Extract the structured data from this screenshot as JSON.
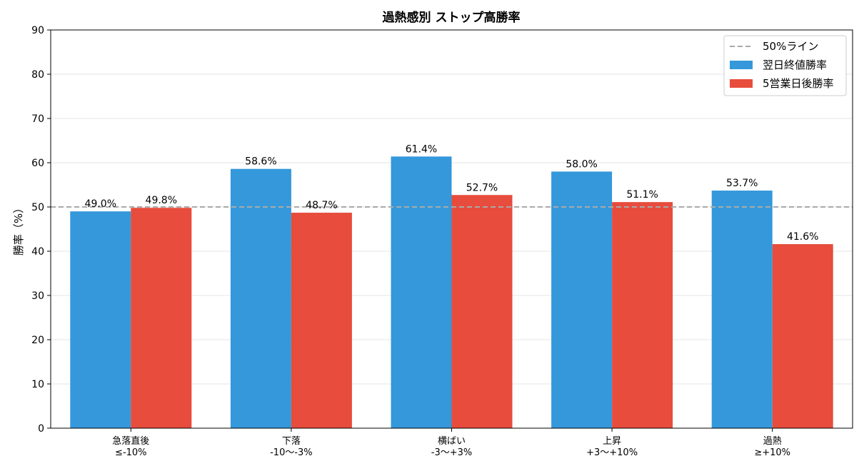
{
  "chart_data": {
    "type": "bar",
    "title": "過熱感別 ストップ高勝率",
    "xlabel": "",
    "ylabel": "勝率（%）",
    "ylim": [
      0,
      90
    ],
    "yticks": [
      0,
      10,
      20,
      30,
      40,
      50,
      60,
      70,
      80,
      90
    ],
    "categories": [
      [
        "急落直後",
        "≤-10%"
      ],
      [
        "下落",
        "-10〜-3%"
      ],
      [
        "横ばい",
        "-3〜+3%"
      ],
      [
        "上昇",
        "+3〜+10%"
      ],
      [
        "過熱",
        "≥+10%"
      ]
    ],
    "series": [
      {
        "name": "翌日終値勝率",
        "color": "#3498db",
        "values": [
          49.0,
          58.6,
          61.4,
          58.0,
          53.7
        ]
      },
      {
        "name": "5営業日後勝率",
        "color": "#e74c3c",
        "values": [
          49.8,
          48.7,
          52.7,
          51.1,
          41.6
        ]
      }
    ],
    "reference_line": {
      "name": "50%ライン",
      "value": 50,
      "color": "#aaaaaa",
      "style": "dashed"
    },
    "grid": "horizontal",
    "legend_position": "top-right",
    "value_format": "{v}%"
  }
}
